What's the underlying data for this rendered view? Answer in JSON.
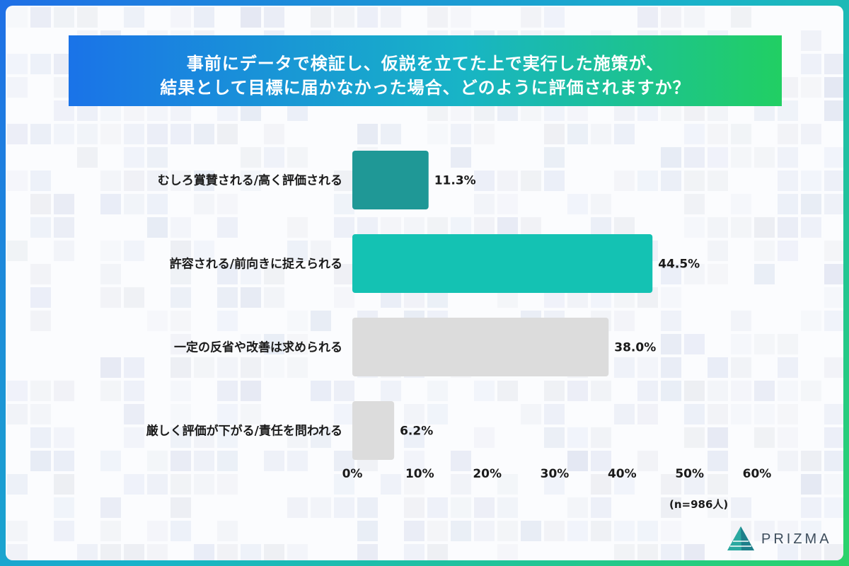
{
  "title": {
    "line1": "事前にデータで検証し、仮説を立てた上で実行した施策が、",
    "line2": "結果として目標に届かなかった場合、どのように評価されますか？"
  },
  "chart_data": {
    "type": "bar",
    "orientation": "horizontal",
    "categories": [
      "むしろ賞賛される/高く評価される",
      "許容される/前向きに捉えられる",
      "一定の反省や改善は求められる",
      "厳しく評価が下がる/責任を問われる"
    ],
    "values": [
      11.3,
      44.5,
      38.0,
      6.2
    ],
    "value_labels": [
      "11.3%",
      "44.5%",
      "38.0%",
      "6.2%"
    ],
    "bar_colors": [
      "#1f9896",
      "#14c2b3",
      "#dcdcdc",
      "#dcdcdc"
    ],
    "xlim": [
      0,
      60
    ],
    "xticks": [
      0,
      10,
      20,
      30,
      40,
      50,
      60
    ],
    "xtick_labels": [
      "0%",
      "10%",
      "20%",
      "30%",
      "40%",
      "50%",
      "60%"
    ],
    "grid": false,
    "legend": "none",
    "note": "(n=986人)"
  },
  "brand": {
    "name": "PRIZMA"
  },
  "colors": {
    "frame_start": "#1f6fe6",
    "frame_end": "#2ad36a",
    "bar_primary": "#1f9896",
    "bar_highlight": "#14c2b3",
    "bar_neutral": "#dcdcdc"
  }
}
